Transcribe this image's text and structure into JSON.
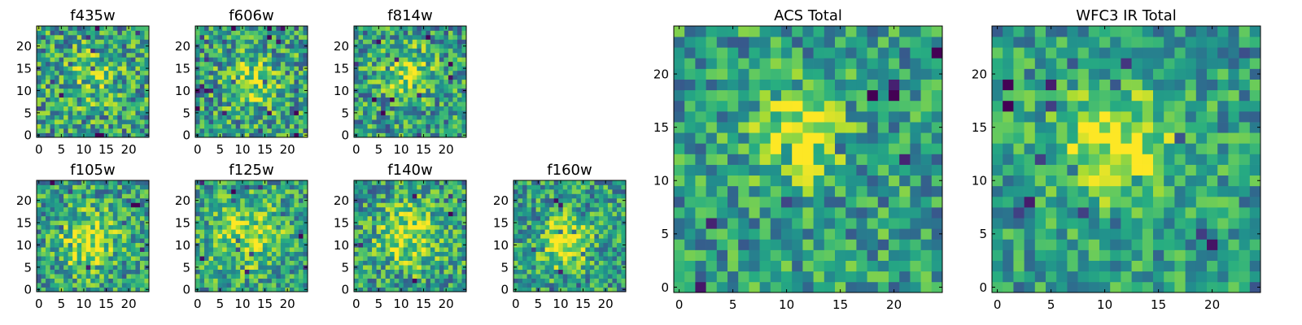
{
  "chart_data": [
    {
      "type": "heatmap",
      "title": "f435w",
      "x_ticks": [
        "0",
        "5",
        "10",
        "15",
        "20"
      ],
      "y_ticks": [
        "0",
        "5",
        "10",
        "15",
        "20"
      ],
      "xlim": [
        -0.5,
        24.5
      ],
      "ylim": [
        -0.5,
        24.5
      ],
      "grid_size": [
        25,
        25
      ],
      "peak_center": [
        12,
        13
      ],
      "peak_width": 5,
      "peak_strength": 0.18,
      "noise": 0.42,
      "colormap": "viridis",
      "grid": false
    },
    {
      "type": "heatmap",
      "title": "f606w",
      "x_ticks": [
        "0",
        "5",
        "10",
        "15",
        "20"
      ],
      "y_ticks": [
        "0",
        "5",
        "10",
        "15",
        "20"
      ],
      "xlim": [
        -0.5,
        24.5
      ],
      "ylim": [
        -0.5,
        24.5
      ],
      "grid_size": [
        25,
        25
      ],
      "peak_center": [
        12,
        12
      ],
      "peak_width": 4,
      "peak_strength": 0.3,
      "noise": 0.42,
      "colormap": "viridis",
      "grid": false
    },
    {
      "type": "heatmap",
      "title": "f814w",
      "x_ticks": [
        "0",
        "5",
        "10",
        "15",
        "20"
      ],
      "y_ticks": [
        "0",
        "5",
        "10",
        "15",
        "20"
      ],
      "xlim": [
        -0.5,
        24.5
      ],
      "ylim": [
        -0.5,
        24.5
      ],
      "grid_size": [
        25,
        25
      ],
      "peak_center": [
        12,
        14
      ],
      "peak_width": 4,
      "peak_strength": 0.3,
      "noise": 0.4,
      "colormap": "viridis",
      "grid": false
    },
    {
      "type": "heatmap",
      "title": "f105w",
      "x_ticks": [
        "0",
        "5",
        "10",
        "15",
        "20"
      ],
      "y_ticks": [
        "0",
        "5",
        "10",
        "15",
        "20"
      ],
      "xlim": [
        -0.5,
        24.5
      ],
      "ylim": [
        -0.5,
        24.5
      ],
      "grid_size": [
        25,
        25
      ],
      "peak_center": [
        11,
        11
      ],
      "peak_width": 5,
      "peak_strength": 0.35,
      "noise": 0.38,
      "colormap": "viridis",
      "grid": false
    },
    {
      "type": "heatmap",
      "title": "f125w",
      "x_ticks": [
        "0",
        "5",
        "10",
        "15",
        "20"
      ],
      "y_ticks": [
        "0",
        "5",
        "10",
        "15",
        "20"
      ],
      "xlim": [
        -0.5,
        24.5
      ],
      "ylim": [
        -0.5,
        24.5
      ],
      "grid_size": [
        25,
        25
      ],
      "peak_center": [
        11,
        12
      ],
      "peak_width": 6,
      "peak_strength": 0.32,
      "noise": 0.36,
      "colormap": "viridis",
      "grid": false
    },
    {
      "type": "heatmap",
      "title": "f140w",
      "x_ticks": [
        "0",
        "5",
        "10",
        "15",
        "20"
      ],
      "y_ticks": [
        "0",
        "5",
        "10",
        "15",
        "20"
      ],
      "xlim": [
        -0.5,
        24.5
      ],
      "ylim": [
        -0.5,
        24.5
      ],
      "grid_size": [
        25,
        25
      ],
      "peak_center": [
        12,
        12
      ],
      "peak_width": 5,
      "peak_strength": 0.36,
      "noise": 0.38,
      "colormap": "viridis",
      "grid": false
    },
    {
      "type": "heatmap",
      "title": "f160w",
      "x_ticks": [
        "0",
        "5",
        "10",
        "15",
        "20"
      ],
      "y_ticks": [
        "0",
        "5",
        "10",
        "15",
        "20"
      ],
      "xlim": [
        -0.5,
        24.5
      ],
      "ylim": [
        -0.5,
        24.5
      ],
      "grid_size": [
        25,
        25
      ],
      "peak_center": [
        11,
        11
      ],
      "peak_width": 4,
      "peak_strength": 0.45,
      "noise": 0.36,
      "colormap": "viridis",
      "grid": false
    },
    {
      "type": "heatmap",
      "title": "ACS Total",
      "x_ticks": [
        "0",
        "5",
        "10",
        "15",
        "20"
      ],
      "y_ticks": [
        "0",
        "5",
        "10",
        "15",
        "20"
      ],
      "xlim": [
        -0.5,
        24.5
      ],
      "ylim": [
        -0.5,
        24.5
      ],
      "grid_size": [
        25,
        25
      ],
      "peak_center": [
        11,
        14
      ],
      "peak_width": 3,
      "peak_strength": 0.42,
      "noise": 0.34,
      "colormap": "viridis",
      "grid": false
    },
    {
      "type": "heatmap",
      "title": "WFC3 IR Total",
      "x_ticks": [
        "0",
        "5",
        "10",
        "15",
        "20"
      ],
      "y_ticks": [
        "0",
        "5",
        "10",
        "15",
        "20"
      ],
      "xlim": [
        -0.5,
        24.5
      ],
      "ylim": [
        -0.5,
        24.5
      ],
      "grid_size": [
        25,
        25
      ],
      "peak_center": [
        11,
        13
      ],
      "peak_width": 4,
      "peak_strength": 0.45,
      "noise": 0.3,
      "colormap": "viridis",
      "grid": false
    }
  ]
}
